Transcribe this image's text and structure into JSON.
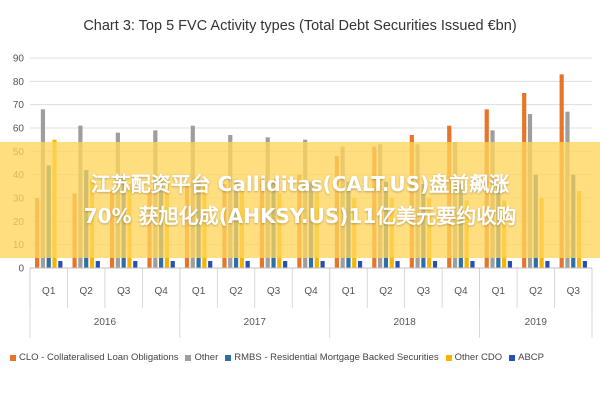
{
  "chart_data": {
    "type": "bar",
    "title": "Chart 3: Top 5 FVC Activity types (Total Debt Securities Issued €bn)",
    "xlabel": "",
    "ylabel": "",
    "ylim": [
      0,
      90
    ],
    "yticks": [
      0,
      10,
      20,
      30,
      40,
      50,
      60,
      70,
      80,
      90
    ],
    "grid": true,
    "legend_position": "bottom",
    "categories": [
      "Q1",
      "Q2",
      "Q3",
      "Q4",
      "Q1",
      "Q2",
      "Q3",
      "Q4",
      "Q1",
      "Q2",
      "Q3",
      "Q4",
      "Q1",
      "Q2",
      "Q3"
    ],
    "groups": [
      {
        "label": "2016",
        "count": 4
      },
      {
        "label": "2017",
        "count": 4
      },
      {
        "label": "2018",
        "count": 4
      },
      {
        "label": "2019",
        "count": 3
      }
    ],
    "series": [
      {
        "name": "CLO - Collateralised Loan Obligations",
        "color": "#e8742a",
        "values": [
          30,
          32,
          33,
          34,
          35,
          36,
          38,
          40,
          48,
          52,
          57,
          61,
          68,
          75,
          83
        ]
      },
      {
        "name": "Other",
        "color": "#9e9e9e",
        "values": [
          68,
          61,
          58,
          59,
          61,
          57,
          56,
          55,
          52,
          53,
          53,
          54,
          59,
          66,
          67
        ]
      },
      {
        "name": "RMBS - Residential Mortgage Backed Securities",
        "color": "#2e6fa7",
        "values": [
          44,
          42,
          40,
          40,
          38,
          38,
          38,
          37,
          37,
          37,
          36,
          36,
          36,
          40,
          40
        ]
      },
      {
        "name": "Other CDO",
        "color": "#f5b400",
        "values": [
          55,
          38,
          36,
          38,
          35,
          33,
          32,
          32,
          30,
          30,
          30,
          29,
          29,
          30,
          33
        ]
      },
      {
        "name": "ABCP",
        "color": "#2b4fb0",
        "values": [
          3,
          3,
          3,
          3,
          3,
          3,
          3,
          3,
          3,
          3,
          3,
          3,
          3,
          3,
          3
        ]
      }
    ]
  },
  "banner": {
    "line1": "江苏配资平台 Calliditas(CALT.US)盘前飙涨",
    "line2": "70% 获旭化成(AHKSY.US)11亿美元要约收购"
  }
}
